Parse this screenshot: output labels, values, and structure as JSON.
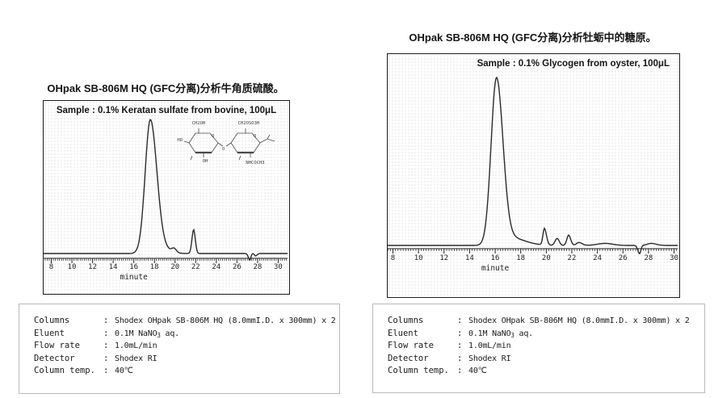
{
  "panels": [
    {
      "title": "OHpak SB-806M HQ (GFC分离)分析牛角质硫酸。",
      "sample_label": "Sample : 0.1% Keratan sulfate from bovine, 100μL",
      "structure": {
        "labels": {
          "ch2oh": "CH2OH",
          "ch2oso3h": "CH2OSO3H",
          "ho": "HO",
          "oh": "OH",
          "nhcoch3": "NHCOCH3",
          "o1": "O",
          "o2": "O",
          "o3": "O"
        }
      },
      "table": {
        "separator": ":",
        "rows": [
          {
            "label": "Columns",
            "value": [
              {
                "t": "Shodex OHpak SB-806M HQ (8.0mmI.D. x 300mm) x 2"
              }
            ]
          },
          {
            "label": "Eluent",
            "value": [
              {
                "t": "0.1M NaNO"
              },
              {
                "t": "3",
                "sub": true
              },
              {
                "t": " aq."
              }
            ]
          },
          {
            "label": "Flow rate",
            "value": [
              {
                "t": "1.0mL/min"
              }
            ]
          },
          {
            "label": "Detector",
            "value": [
              {
                "t": "Shodex RI"
              }
            ]
          },
          {
            "label": "Column temp.",
            "value": [
              {
                "t": "40℃"
              }
            ]
          }
        ]
      }
    },
    {
      "title": "OHpak SB-806M HQ (GFC分离)分析牡蛎中的糖原。",
      "sample_label": "Sample : 0.1% Glycogen from oyster, 100μL",
      "table": {
        "separator": ":",
        "rows": [
          {
            "label": "Columns",
            "value": [
              {
                "t": "Shodex OHpak SB-806M HQ (8.0mmI.D. x 300mm) x 2"
              }
            ]
          },
          {
            "label": "Eluent",
            "value": [
              {
                "t": "0.1M NaNO"
              },
              {
                "t": "3",
                "sub": true
              },
              {
                "t": " aq."
              }
            ]
          },
          {
            "label": "Flow rate",
            "value": [
              {
                "t": "1.0mL/min"
              }
            ]
          },
          {
            "label": "Detector",
            "value": [
              {
                "t": "Shodex RI"
              }
            ]
          },
          {
            "label": "Column temp.",
            "value": [
              {
                "t": "40℃"
              }
            ]
          }
        ]
      }
    }
  ],
  "colors": {
    "curve": "#2b2b2b",
    "axis": "#222222",
    "tick_text": "#222222"
  },
  "chart_data": [
    {
      "type": "line",
      "title": "OHpak SB-806M HQ (GFC分离)分析牛角质硫酸。",
      "annotation": "Sample : 0.1% Keratan sulfate from bovine, 100μL",
      "xlabel": "minute",
      "x_ticks": [
        8,
        10,
        12,
        14,
        16,
        18,
        20,
        22,
        24,
        26,
        28,
        30
      ],
      "minor_tick_step": 0.2,
      "xlim": [
        7.25,
        31.0
      ],
      "ylim": [
        -0.08,
        1.05
      ],
      "grid": false,
      "legend": "none",
      "peaks": [
        {
          "center": 17.6,
          "height": 1.0,
          "sigma_l": 0.5,
          "sigma_r": 0.62,
          "note": "keratan sulfate main peak"
        },
        {
          "center": 18.6,
          "height": 0.04,
          "sigma_l": 0.5,
          "sigma_r": 0.8
        },
        {
          "center": 19.9,
          "height": 0.03,
          "sigma_l": 0.22,
          "sigma_r": 0.22
        },
        {
          "center": 21.8,
          "height": 0.18,
          "sigma_l": 0.16,
          "sigma_r": 0.16
        },
        {
          "center": 27.25,
          "height": -0.05,
          "sigma_l": 0.14,
          "sigma_r": 0.1
        },
        {
          "center": 27.8,
          "height": -0.018,
          "sigma_l": 0.1,
          "sigma_r": 0.15
        }
      ]
    },
    {
      "type": "line",
      "title": "OHpak SB-806M HQ (GFC分离)分析牡蛎中的糖原。",
      "annotation": "Sample : 0.1% Glycogen from oyster, 100μL",
      "xlabel": "minute",
      "x_ticks": [
        8,
        10,
        12,
        14,
        16,
        18,
        20,
        22,
        24,
        26,
        28,
        30
      ],
      "minor_tick_step": 0.2,
      "xlim": [
        7.6,
        30.3
      ],
      "ylim": [
        -0.08,
        1.05
      ],
      "grid": false,
      "legend": "none",
      "peaks": [
        {
          "center": 16.1,
          "height": 1.0,
          "sigma_l": 0.42,
          "sigma_r": 0.5,
          "note": "glycogen main peak"
        },
        {
          "center": 17.0,
          "height": 0.05,
          "sigma_l": 0.5,
          "sigma_r": 1.2
        },
        {
          "center": 19.85,
          "height": 0.1,
          "sigma_l": 0.11,
          "sigma_r": 0.16
        },
        {
          "center": 20.85,
          "height": 0.042,
          "sigma_l": 0.16,
          "sigma_r": 0.16
        },
        {
          "center": 21.75,
          "height": 0.062,
          "sigma_l": 0.14,
          "sigma_r": 0.16
        },
        {
          "center": 22.55,
          "height": 0.018,
          "sigma_l": 0.18,
          "sigma_r": 0.25
        },
        {
          "center": 24.6,
          "height": 0.012,
          "sigma_l": 0.6,
          "sigma_r": 0.6
        },
        {
          "center": 27.3,
          "height": -0.05,
          "sigma_l": 0.13,
          "sigma_r": 0.1
        },
        {
          "center": 28.2,
          "height": 0.012,
          "sigma_l": 0.3,
          "sigma_r": 0.4
        }
      ]
    }
  ]
}
